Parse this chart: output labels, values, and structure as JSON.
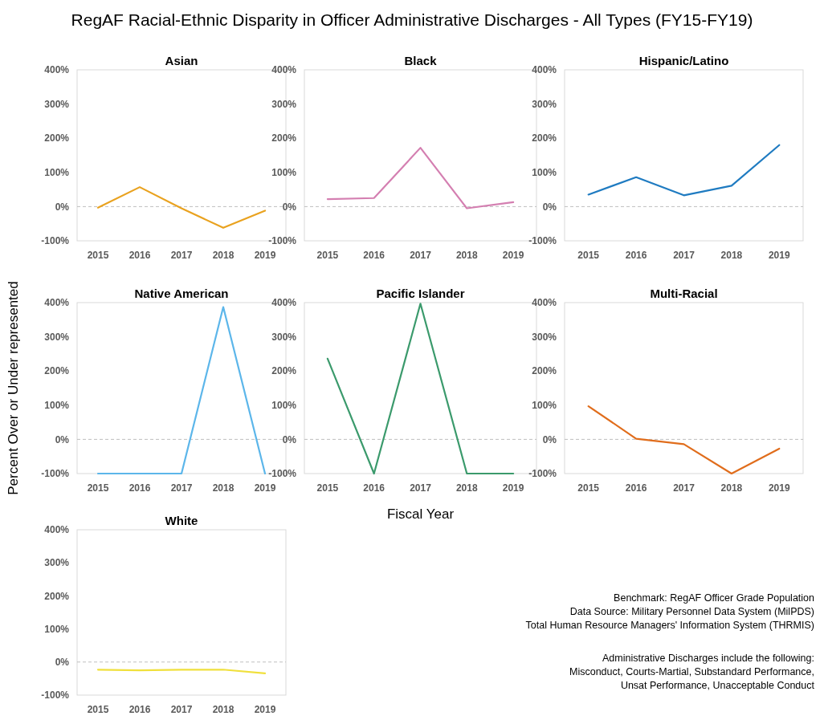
{
  "chart_data": [
    {
      "type": "line",
      "title": "Asian",
      "categories": [
        "2015",
        "2016",
        "2017",
        "2018",
        "2019"
      ],
      "series": [
        {
          "color": "#e9a21f",
          "values": [
            -3,
            57,
            -5,
            -62,
            -12
          ]
        }
      ],
      "ylim": [
        -100,
        400
      ],
      "yticks": [
        {
          "value": -100,
          "label": "-100%"
        },
        {
          "value": 0,
          "label": "0%"
        },
        {
          "value": 100,
          "label": "100%"
        },
        {
          "value": 200,
          "label": "200%"
        },
        {
          "value": 300,
          "label": "300%"
        },
        {
          "value": 400,
          "label": "400%"
        }
      ],
      "ref_lines": [
        {
          "axis": "y",
          "value": 0,
          "color": "#bfbfbf",
          "line_style": "dashed"
        }
      ],
      "grid": false
    },
    {
      "type": "line",
      "title": "Black",
      "categories": [
        "2015",
        "2016",
        "2017",
        "2018",
        "2019"
      ],
      "series": [
        {
          "color": "#d47fb1",
          "values": [
            22,
            25,
            172,
            -5,
            13
          ]
        }
      ],
      "ylim": [
        -100,
        400
      ],
      "yticks": [
        {
          "value": -100,
          "label": "-100%"
        },
        {
          "value": 0,
          "label": "0%"
        },
        {
          "value": 100,
          "label": "100%"
        },
        {
          "value": 200,
          "label": "200%"
        },
        {
          "value": 300,
          "label": "300%"
        },
        {
          "value": 400,
          "label": "400%"
        }
      ],
      "ref_lines": [
        {
          "axis": "y",
          "value": 0,
          "color": "#bfbfbf",
          "line_style": "dashed"
        }
      ],
      "grid": false
    },
    {
      "type": "line",
      "title": "Hispanic/Latino",
      "categories": [
        "2015",
        "2016",
        "2017",
        "2018",
        "2019"
      ],
      "series": [
        {
          "color": "#1f7bc1",
          "values": [
            35,
            86,
            33,
            61,
            180
          ]
        }
      ],
      "ylim": [
        -100,
        400
      ],
      "yticks": [
        {
          "value": -100,
          "label": "-100%"
        },
        {
          "value": 0,
          "label": "0%"
        },
        {
          "value": 100,
          "label": "100%"
        },
        {
          "value": 200,
          "label": "200%"
        },
        {
          "value": 300,
          "label": "300%"
        },
        {
          "value": 400,
          "label": "400%"
        }
      ],
      "ref_lines": [
        {
          "axis": "y",
          "value": 0,
          "color": "#bfbfbf",
          "line_style": "dashed"
        }
      ],
      "grid": false
    },
    {
      "type": "line",
      "title": "Native American",
      "ylabel": "Percent Over or Under represented",
      "categories": [
        "2015",
        "2016",
        "2017",
        "2018",
        "2019"
      ],
      "series": [
        {
          "color": "#5cb6ea",
          "values": [
            -100,
            -100,
            -100,
            387,
            -100
          ]
        }
      ],
      "ylim": [
        -100,
        400
      ],
      "yticks": [
        {
          "value": -100,
          "label": "-100%"
        },
        {
          "value": 0,
          "label": "0%"
        },
        {
          "value": 100,
          "label": "100%"
        },
        {
          "value": 200,
          "label": "200%"
        },
        {
          "value": 300,
          "label": "300%"
        },
        {
          "value": 400,
          "label": "400%"
        }
      ],
      "ref_lines": [
        {
          "axis": "y",
          "value": 0,
          "color": "#bfbfbf",
          "line_style": "dashed"
        }
      ],
      "grid": false
    },
    {
      "type": "line",
      "title": "Pacific Islander",
      "xlabel": "Fiscal Year",
      "categories": [
        "2015",
        "2016",
        "2017",
        "2018",
        "2019"
      ],
      "series": [
        {
          "color": "#3b9a6c",
          "values": [
            236,
            -100,
            397,
            -100,
            -100
          ]
        }
      ],
      "ylim": [
        -100,
        400
      ],
      "yticks": [
        {
          "value": -100,
          "label": "-100%"
        },
        {
          "value": 0,
          "label": "0%"
        },
        {
          "value": 100,
          "label": "100%"
        },
        {
          "value": 200,
          "label": "200%"
        },
        {
          "value": 300,
          "label": "300%"
        },
        {
          "value": 400,
          "label": "400%"
        }
      ],
      "ref_lines": [
        {
          "axis": "y",
          "value": 0,
          "color": "#bfbfbf",
          "line_style": "dashed"
        }
      ],
      "grid": false
    },
    {
      "type": "line",
      "title": "Multi-Racial",
      "categories": [
        "2015",
        "2016",
        "2017",
        "2018",
        "2019"
      ],
      "series": [
        {
          "color": "#e06d1c",
          "values": [
            97,
            2,
            -14,
            -100,
            -27
          ]
        }
      ],
      "ylim": [
        -100,
        400
      ],
      "yticks": [
        {
          "value": -100,
          "label": "-100%"
        },
        {
          "value": 0,
          "label": "0%"
        },
        {
          "value": 100,
          "label": "100%"
        },
        {
          "value": 200,
          "label": "200%"
        },
        {
          "value": 300,
          "label": "300%"
        },
        {
          "value": 400,
          "label": "400%"
        }
      ],
      "ref_lines": [
        {
          "axis": "y",
          "value": 0,
          "color": "#bfbfbf",
          "line_style": "dashed"
        }
      ],
      "grid": false
    },
    {
      "type": "line",
      "title": "White",
      "categories": [
        "2015",
        "2016",
        "2017",
        "2018",
        "2019"
      ],
      "series": [
        {
          "color": "#f0e03c",
          "values": [
            -23,
            -25,
            -23,
            -23,
            -34
          ]
        }
      ],
      "ylim": [
        -100,
        400
      ],
      "yticks": [
        {
          "value": -100,
          "label": "-100%"
        },
        {
          "value": 0,
          "label": "0%"
        },
        {
          "value": 100,
          "label": "100%"
        },
        {
          "value": 200,
          "label": "200%"
        },
        {
          "value": 300,
          "label": "300%"
        },
        {
          "value": 400,
          "label": "400%"
        }
      ],
      "ref_lines": [
        {
          "axis": "y",
          "value": 0,
          "color": "#bfbfbf",
          "line_style": "dashed"
        }
      ],
      "grid": false
    },
    {
      "type": "other",
      "title": "RegAF Racial-Ethnic Disparity in Officer Administrative Discharges - All Types (FY15-FY19)",
      "annotations": [
        "Benchmark: RegAF Officer Grade Population",
        "Data Source: Military Personnel Data System (MilPDS)",
        "Total Human Resource Managers' Information System (THRMIS)",
        "Administrative Discharges include the following:",
        "Misconduct, Courts-Martial, Substandard Performance,",
        "Unsat Performance, Unacceptable Conduct"
      ]
    }
  ]
}
